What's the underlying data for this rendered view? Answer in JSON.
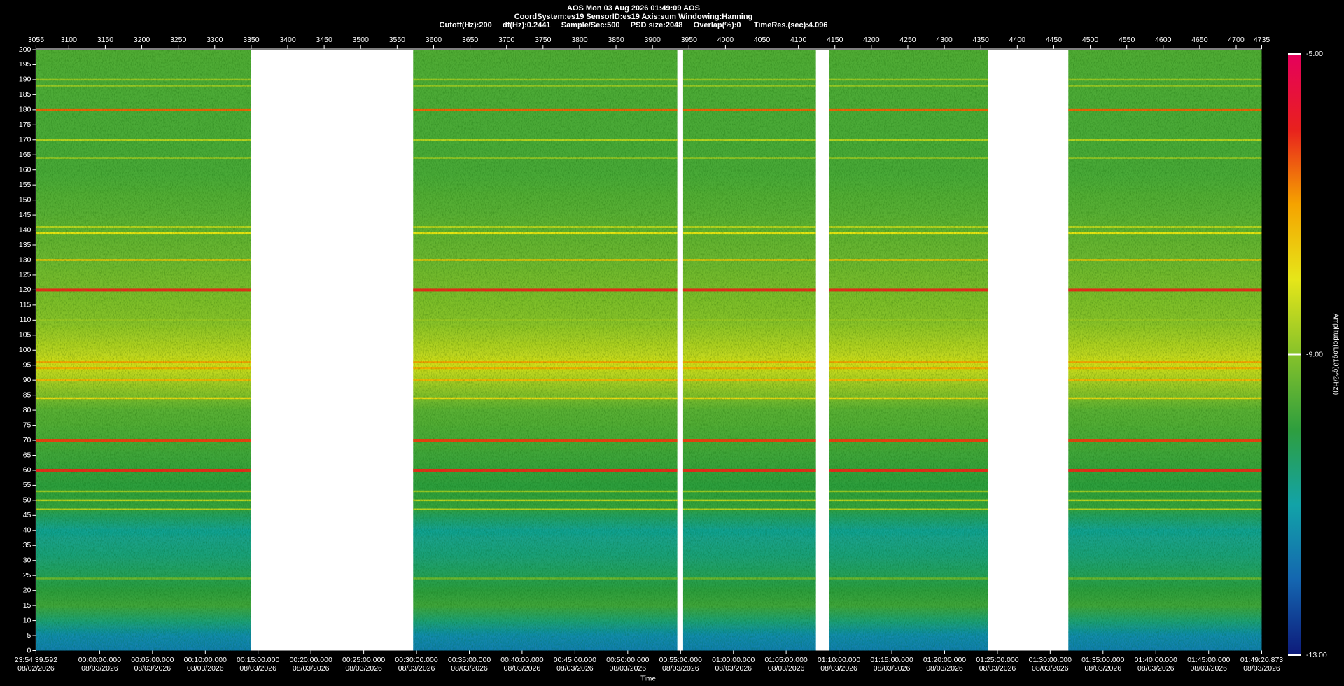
{
  "chart_data": {
    "type": "spectrogram",
    "title": "AOS  Mon 03 Aug 2026 01:49:09  AOS",
    "subtitle": "CoordSystem:es19   SensorID:es19    Axis:sum    Windowing:Hanning",
    "info": "Cutoff(Hz):200     df(Hz):0.2441     Sample/Sec:500     PSD size:2048     Overlap(%):0      TimeRes.(sec):4.096",
    "xlim": [
      3055,
      4735
    ],
    "xticks": [
      3055,
      3100,
      3150,
      3200,
      3250,
      3300,
      3350,
      3400,
      3450,
      3500,
      3550,
      3600,
      3650,
      3700,
      3750,
      3800,
      3850,
      3900,
      3950,
      4000,
      4050,
      4100,
      4150,
      4200,
      4250,
      4300,
      4350,
      4400,
      4450,
      4500,
      4550,
      4600,
      4650,
      4700,
      4735
    ],
    "x2label": "Time",
    "x2ticks": [
      {
        "value": 3055,
        "label": "23:54:39.592"
      },
      {
        "value": 3142.3,
        "label": "00:00:00.000"
      },
      {
        "value": 3214.7,
        "label": "00:05:00.000"
      },
      {
        "value": 3287.1,
        "label": "00:10:00.000"
      },
      {
        "value": 3359.4,
        "label": "00:15:00.000"
      },
      {
        "value": 3431.8,
        "label": "00:20:00.000"
      },
      {
        "value": 3504.2,
        "label": "00:25:00.000"
      },
      {
        "value": 3576.6,
        "label": "00:30:00.000"
      },
      {
        "value": 3649.0,
        "label": "00:35:00.000"
      },
      {
        "value": 3721.3,
        "label": "00:40:00.000"
      },
      {
        "value": 3793.7,
        "label": "00:45:00.000"
      },
      {
        "value": 3866.1,
        "label": "00:50:00.000"
      },
      {
        "value": 3938.5,
        "label": "00:55:00.000"
      },
      {
        "value": 4010.9,
        "label": "01:00:00.000"
      },
      {
        "value": 4083.2,
        "label": "01:05:00.000"
      },
      {
        "value": 4155.6,
        "label": "01:10:00.000"
      },
      {
        "value": 4228.0,
        "label": "01:15:00.000"
      },
      {
        "value": 4300.4,
        "label": "01:20:00.000"
      },
      {
        "value": 4372.8,
        "label": "01:25:00.000"
      },
      {
        "value": 4445.1,
        "label": "01:30:00.000"
      },
      {
        "value": 4517.5,
        "label": "01:35:00.000"
      },
      {
        "value": 4589.9,
        "label": "01:40:00.000"
      },
      {
        "value": 4662.3,
        "label": "01:45:00.000"
      },
      {
        "value": 4735,
        "label": "01:49:20.873"
      }
    ],
    "x2dates": [
      "08/02/2026",
      "08/03/2026",
      "08/03/2026",
      "08/03/2026",
      "08/03/2026",
      "08/03/2026",
      "08/03/2026",
      "08/03/2026",
      "08/03/2026",
      "08/03/2026",
      "08/03/2026",
      "08/03/2026",
      "08/03/2026",
      "08/03/2026",
      "08/03/2026",
      "08/03/2026",
      "08/03/2026",
      "08/03/2026",
      "08/03/2026",
      "08/03/2026",
      "08/03/2026",
      "08/03/2026",
      "08/03/2026",
      "08/03/2026"
    ],
    "ylim": [
      0,
      200
    ],
    "yticks": [
      0,
      5,
      10,
      15,
      20,
      25,
      30,
      35,
      40,
      45,
      50,
      55,
      60,
      65,
      70,
      75,
      80,
      85,
      90,
      95,
      100,
      105,
      110,
      115,
      120,
      125,
      130,
      135,
      140,
      145,
      150,
      155,
      160,
      165,
      170,
      175,
      180,
      185,
      190,
      195,
      200
    ],
    "segments": [
      [
        3055,
        3350
      ],
      [
        3572,
        3934
      ],
      [
        3942,
        4124
      ],
      [
        4142,
        4360
      ],
      [
        4470,
        4735
      ]
    ],
    "profile": {
      "frequency": [
        0,
        5,
        10,
        15,
        20,
        30,
        40,
        45,
        48,
        55,
        80,
        95,
        100,
        110,
        130,
        160,
        200
      ],
      "amplitude": [
        -11.6,
        -11.4,
        -10.5,
        -9.8,
        -10.0,
        -10.5,
        -10.8,
        -10.3,
        -9.9,
        -10.0,
        -9.5,
        -8.2,
        -8.5,
        -9.0,
        -9.3,
        -9.7,
        -9.6
      ]
    },
    "tones": [
      {
        "frequency": 190,
        "amplitude": -8.8
      },
      {
        "frequency": 188,
        "amplitude": -8.8
      },
      {
        "frequency": 180,
        "amplitude": -6.5
      },
      {
        "frequency": 170,
        "amplitude": -8.5
      },
      {
        "frequency": 164,
        "amplitude": -8.7
      },
      {
        "frequency": 141,
        "amplitude": -8.5
      },
      {
        "frequency": 139,
        "amplitude": -8.0
      },
      {
        "frequency": 130,
        "amplitude": -7.5
      },
      {
        "frequency": 120,
        "amplitude": -6.0
      },
      {
        "frequency": 110,
        "amplitude": -8.8
      },
      {
        "frequency": 96,
        "amplitude": -7.0
      },
      {
        "frequency": 94,
        "amplitude": -7.2
      },
      {
        "frequency": 90,
        "amplitude": -7.3
      },
      {
        "frequency": 84,
        "amplitude": -7.8
      },
      {
        "frequency": 70,
        "amplitude": -6.2
      },
      {
        "frequency": 60,
        "amplitude": -6.0
      },
      {
        "frequency": 53,
        "amplitude": -8.8
      },
      {
        "frequency": 50,
        "amplitude": -8.5
      },
      {
        "frequency": 47,
        "amplitude": -8.5
      },
      {
        "frequency": 24,
        "amplitude": -9.3
      }
    ],
    "clim": [
      -13,
      -5
    ],
    "colormap": [
      "#0d1a7a",
      "#1466b0",
      "#12a3a8",
      "#2e9e3e",
      "#86c22a",
      "#e6e619",
      "#f5a300",
      "#e8201e",
      "#e6005c"
    ],
    "colorbar_label": "Amplitude(Log10(g^2/Hz))",
    "colorbar_ticks": [
      {
        "value": -13,
        "label": "-13.00"
      },
      {
        "value": -9,
        "label": "-9.00"
      },
      {
        "value": -5,
        "label": "-5.00"
      }
    ]
  }
}
